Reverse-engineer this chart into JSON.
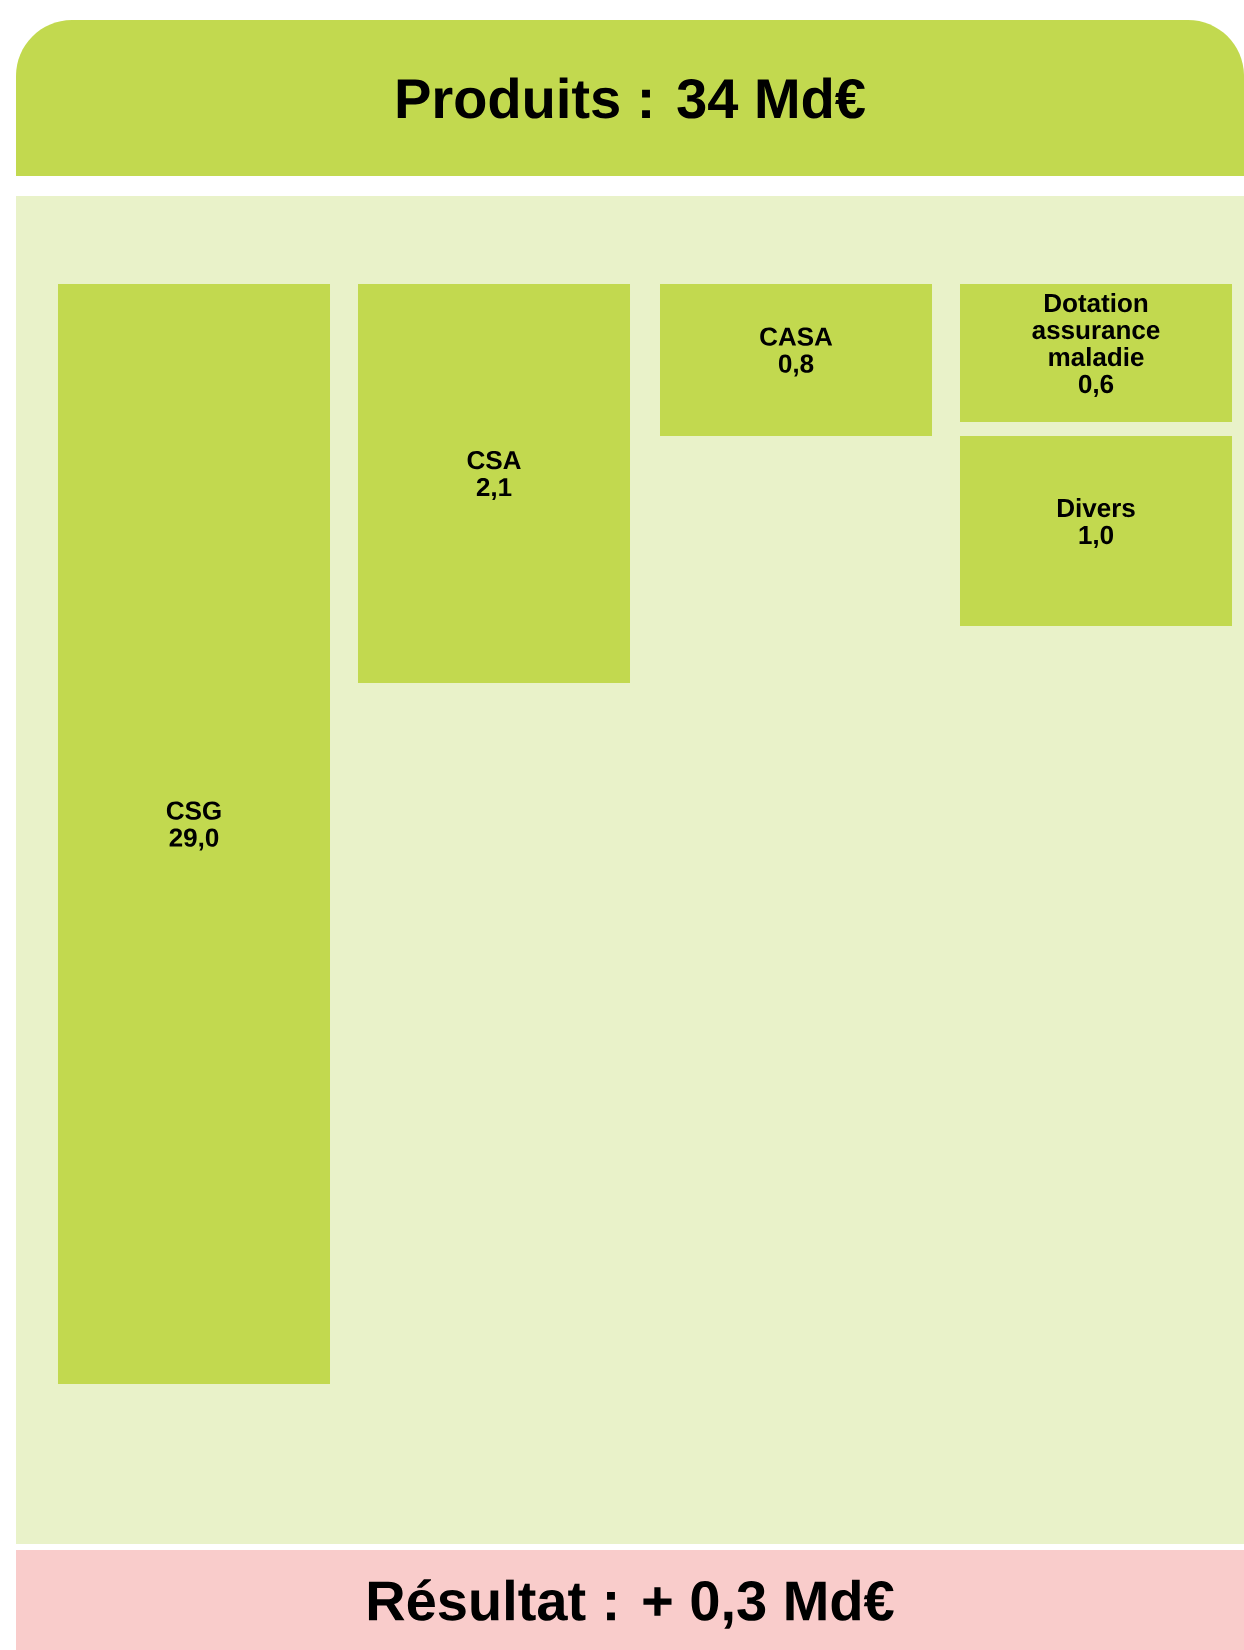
{
  "chart_data": {
    "type": "other",
    "title": "Produits : 34 Md€",
    "categories": [
      "CSG",
      "CSA",
      "CASA",
      "Dotation assurance maladie",
      "Divers"
    ],
    "values": [
      29.0,
      2.1,
      0.8,
      0.6,
      1.0
    ],
    "value_labels": [
      "29,0",
      "2,1",
      "0,8",
      "0,6",
      "1,0"
    ],
    "colors": [
      "#c2d94f",
      "#c2d94f",
      "#c2d94f",
      "#c2d94f",
      "#c2d94f"
    ],
    "annotations": [
      "Résultat : + 0,3 Md€"
    ]
  }
}
